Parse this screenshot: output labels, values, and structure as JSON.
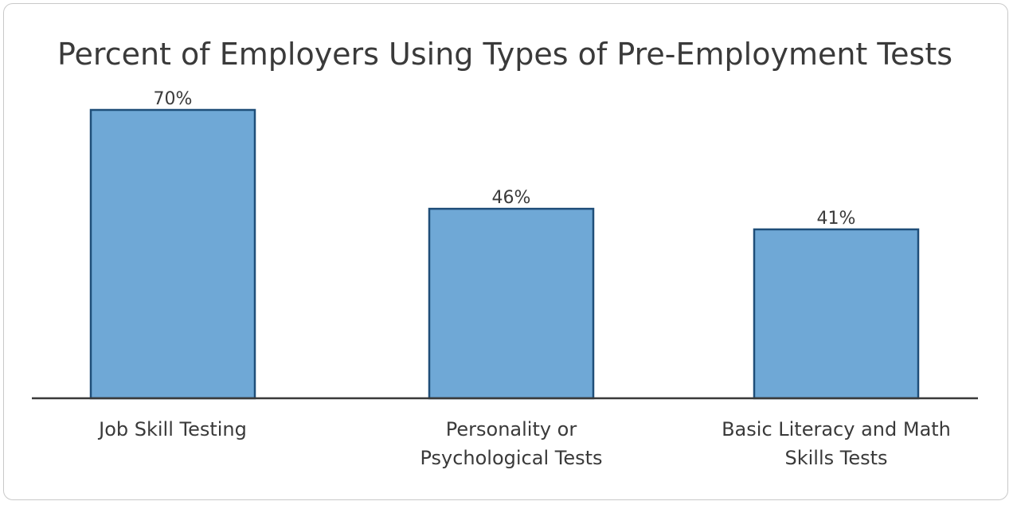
{
  "chart_data": {
    "type": "bar",
    "title": "Percent of Employers Using Types of Pre-Employment Tests",
    "categories": [
      [
        "Job Skill Testing"
      ],
      [
        "Personality or",
        "Psychological Tests"
      ],
      [
        "Basic Literacy and Math",
        "Skills Tests"
      ]
    ],
    "values": [
      70,
      46,
      41
    ],
    "value_labels": [
      "70%",
      "46%",
      "41%"
    ],
    "xlabel": "",
    "ylabel": "",
    "ylim": [
      0,
      70
    ],
    "grid": false,
    "legend": "none",
    "colors": {
      "bar_fill": "#6fa8d6",
      "bar_stroke": "#1f4e79",
      "axis": "#3a3a3a"
    }
  }
}
